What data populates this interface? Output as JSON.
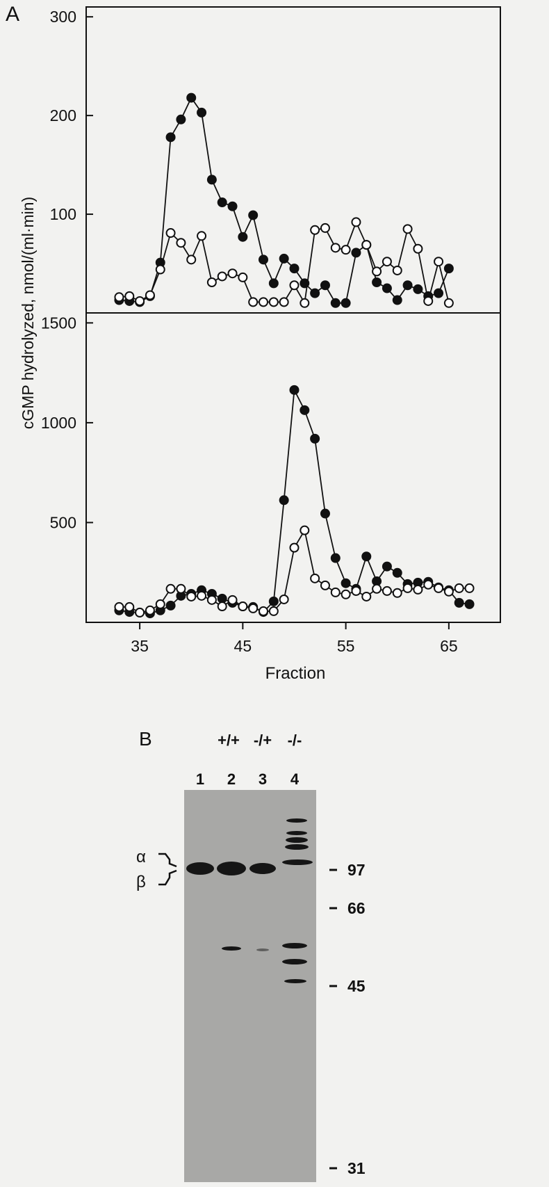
{
  "chart_data": [
    {
      "type": "line",
      "panel_label": "A",
      "ylabel": "cGMP hydrolyzed, nmol/(ml·min)",
      "x": [
        33,
        34,
        35,
        36,
        37,
        38,
        39,
        40,
        41,
        42,
        43,
        44,
        45,
        46,
        47,
        48,
        49,
        50,
        51,
        52,
        53,
        54,
        55,
        56,
        57,
        58,
        59,
        60,
        61,
        62,
        63,
        64,
        65
      ],
      "xlim": [
        29.8,
        70
      ],
      "ylim": [
        0,
        310
      ],
      "yticks": [
        100,
        200,
        300
      ],
      "series": [
        {
          "color": "#111111",
          "marker_fill": "#111111",
          "values": [
            13,
            12,
            11,
            17,
            51,
            178,
            196,
            218,
            203,
            135,
            112,
            108,
            77,
            99,
            54,
            30,
            55,
            45,
            30,
            20,
            28,
            10,
            10,
            61,
            69,
            31,
            25,
            13,
            28,
            24,
            17,
            20,
            45
          ]
        },
        {
          "color": "#111111",
          "marker_fill": "#ffffff",
          "values": [
            16,
            17,
            12,
            18,
            44,
            81,
            71,
            54,
            78,
            31,
            37,
            40,
            36,
            11,
            11,
            11,
            11,
            28,
            10,
            84,
            86,
            66,
            64,
            92,
            69,
            42,
            52,
            43,
            85,
            65,
            12,
            52,
            10
          ]
        }
      ]
    },
    {
      "type": "line",
      "xlabel": "Fraction",
      "x": [
        33,
        34,
        35,
        36,
        37,
        38,
        39,
        40,
        41,
        42,
        43,
        44,
        45,
        46,
        47,
        48,
        49,
        50,
        51,
        52,
        53,
        54,
        55,
        56,
        57,
        58,
        59,
        60,
        61,
        62,
        63,
        64,
        65,
        66,
        67
      ],
      "xlim": [
        29.8,
        70
      ],
      "xticks": [
        35,
        45,
        55,
        65
      ],
      "ylim": [
        0,
        1550
      ],
      "yticks": [
        500,
        1000,
        1500
      ],
      "series": [
        {
          "color": "#111111",
          "marker_fill": "#111111",
          "values": [
            60,
            52,
            49,
            45,
            60,
            84,
            133,
            143,
            161,
            143,
            119,
            98,
            80,
            77,
            52,
            105,
            612,
            1164,
            1063,
            920,
            545,
            322,
            196,
            168,
            330,
            206,
            280,
            248,
            192,
            199,
            203,
            175,
            161,
            98,
            91
          ]
        },
        {
          "color": "#111111",
          "marker_fill": "#ffffff",
          "values": [
            77,
            77,
            49,
            60,
            91,
            168,
            168,
            129,
            133,
            112,
            80,
            112,
            80,
            70,
            56,
            56,
            115,
            374,
            461,
            220,
            185,
            150,
            140,
            157,
            129,
            168,
            157,
            147,
            171,
            164,
            189,
            171,
            154,
            171,
            171
          ]
        }
      ]
    }
  ],
  "gel": {
    "panel_label": "B",
    "genotypes": [
      "+/+",
      "-/+",
      "-/-"
    ],
    "lanes": [
      "1",
      "2",
      "3",
      "4"
    ],
    "markers": [
      "97",
      "66",
      "45",
      "31"
    ],
    "bands": [
      "α",
      "β"
    ]
  }
}
